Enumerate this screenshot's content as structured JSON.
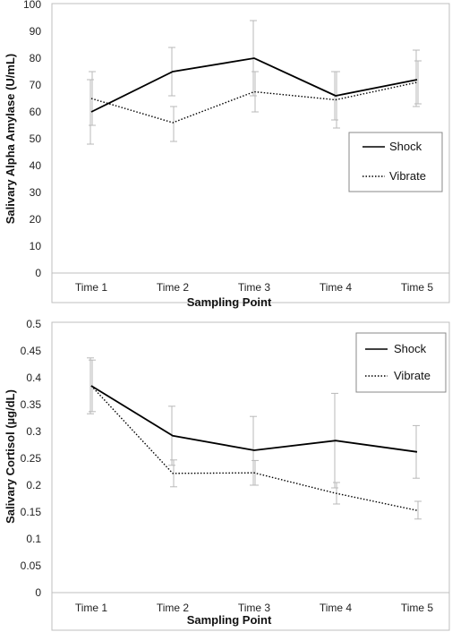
{
  "chart_data": [
    {
      "type": "line",
      "categories": [
        "Time 1",
        "Time 2",
        "Time 3",
        "Time 4",
        "Time 5"
      ],
      "xlabel": "Sampling Point",
      "ylabel": "Salivary Alpha Amylase (U/mL)",
      "ylim": [
        0,
        100
      ],
      "yticks": [
        "0",
        "10",
        "20",
        "30",
        "40",
        "50",
        "60",
        "70",
        "80",
        "90",
        "100"
      ],
      "grid": false,
      "legend_position": "center-right",
      "series": [
        {
          "name": "Shock",
          "style": "solid",
          "color": "#000000",
          "values": [
            60,
            75,
            80,
            66,
            72
          ],
          "err_low": [
            48,
            66,
            66,
            57,
            62
          ],
          "err_high": [
            72,
            84,
            94,
            75,
            83
          ]
        },
        {
          "name": "Vibrate",
          "style": "dotted",
          "color": "#000000",
          "values": [
            65,
            56,
            67.5,
            64.5,
            71
          ],
          "err_low": [
            55,
            49,
            60,
            54,
            63
          ],
          "err_high": [
            75,
            62,
            75,
            75,
            79
          ]
        }
      ]
    },
    {
      "type": "line",
      "categories": [
        "Time 1",
        "Time 2",
        "Time 3",
        "Time 4",
        "Time 5"
      ],
      "xlabel": "Sampling Point",
      "ylabel": "Salivary Cortisol (µg/dL)",
      "ylim": [
        0,
        0.5
      ],
      "yticks": [
        "0",
        "0.05",
        "0.1",
        "0.15",
        "0.2",
        "0.25",
        "0.3",
        "0.35",
        "0.4",
        "0.45",
        "0.5"
      ],
      "grid": false,
      "legend_position": "top-right",
      "series": [
        {
          "name": "Shock",
          "style": "solid",
          "color": "#000000",
          "values": [
            0.385,
            0.292,
            0.265,
            0.283,
            0.262
          ],
          "err_low": [
            0.333,
            0.237,
            0.2,
            0.195,
            0.213
          ],
          "err_high": [
            0.437,
            0.347,
            0.328,
            0.371,
            0.311
          ]
        },
        {
          "name": "Vibrate",
          "style": "dotted",
          "color": "#000000",
          "values": [
            0.385,
            0.222,
            0.223,
            0.185,
            0.153
          ],
          "err_low": [
            0.337,
            0.197,
            0.2,
            0.165,
            0.137
          ],
          "err_high": [
            0.433,
            0.247,
            0.246,
            0.205,
            0.17
          ]
        }
      ]
    }
  ]
}
